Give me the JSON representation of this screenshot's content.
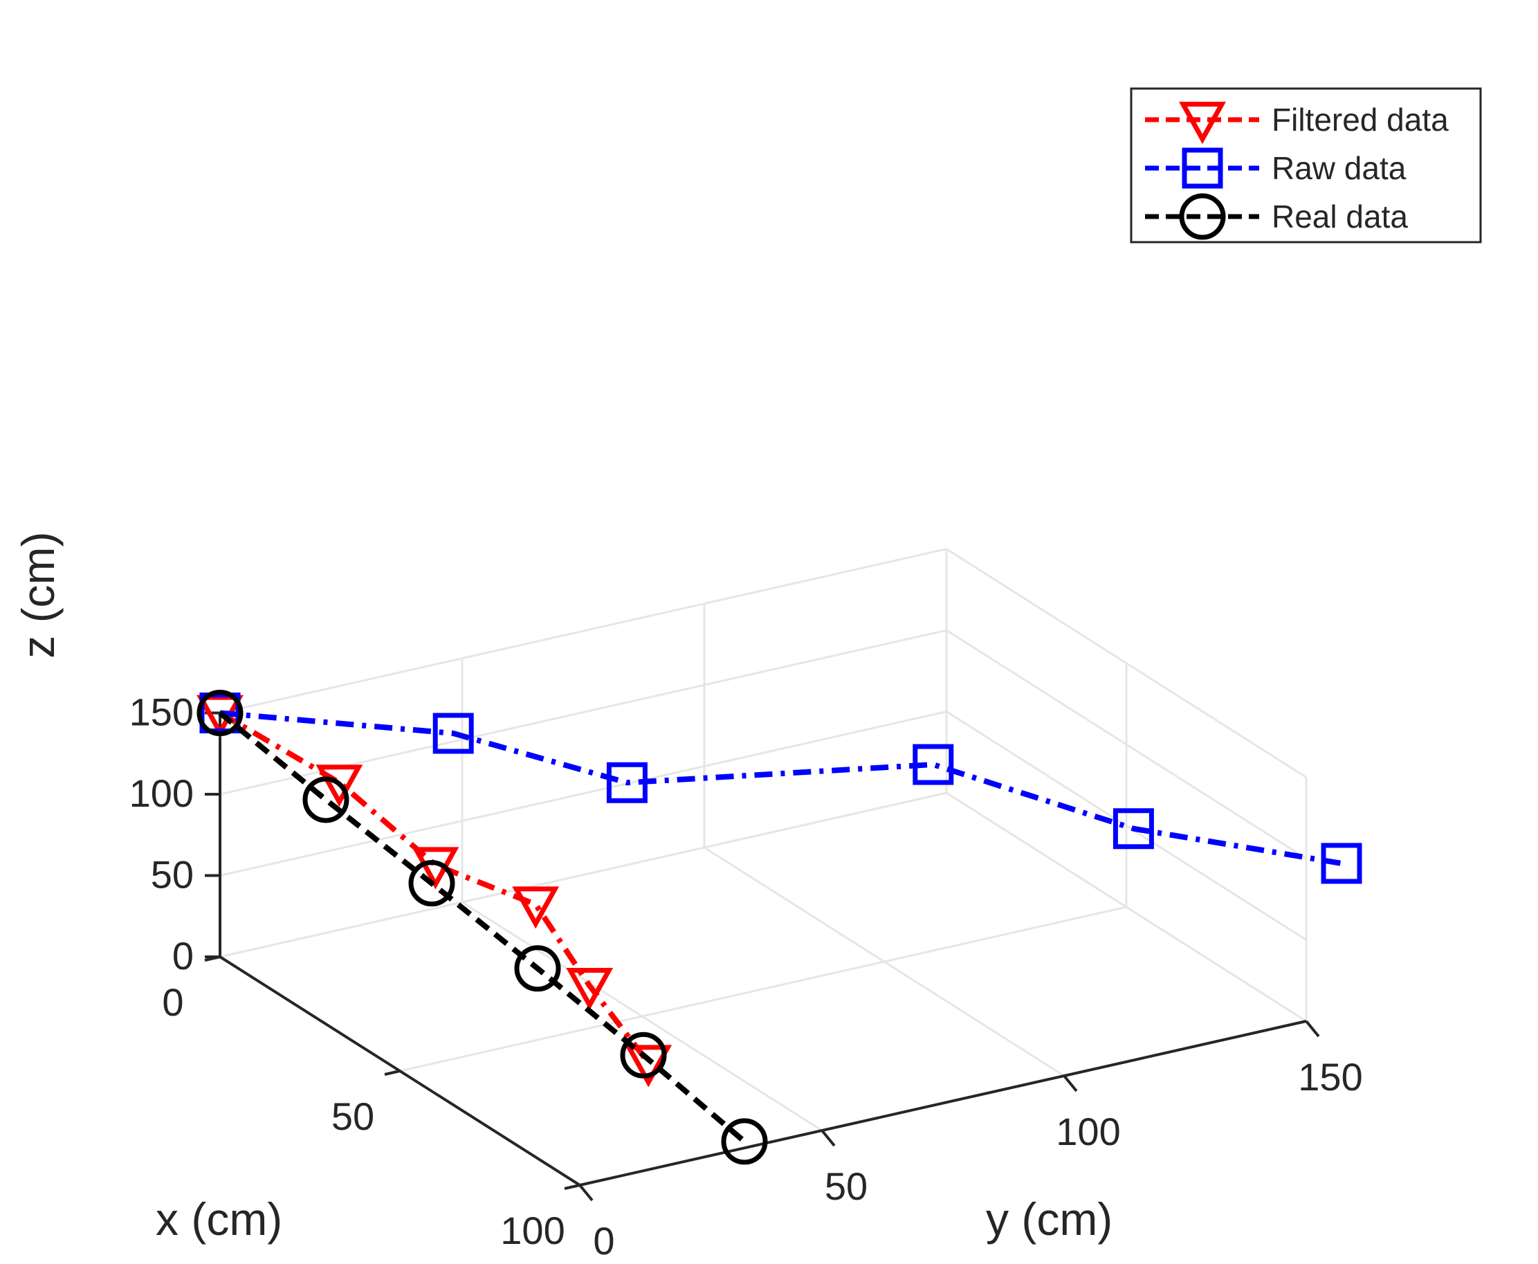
{
  "chart_data": {
    "type": "line3d",
    "xlabel": "x (cm)",
    "ylabel": "y (cm)",
    "zlabel": "z (cm)",
    "xlim": [
      0,
      100
    ],
    "ylim": [
      0,
      150
    ],
    "zlim": [
      0,
      150
    ],
    "xticks": [
      0,
      50,
      100
    ],
    "yticks": [
      0,
      50,
      100,
      150
    ],
    "zticks": [
      0,
      50,
      100,
      150
    ],
    "x_tick_labels": [
      "0",
      "50",
      "100"
    ],
    "y_tick_labels": [
      "0",
      "50",
      "100",
      "150"
    ],
    "z_tick_labels": [
      "0",
      "50",
      "100",
      "150"
    ],
    "grid": true,
    "box": true,
    "legend_position": "top-right",
    "series": [
      {
        "name": "Filtered data",
        "color": "#ff0000",
        "marker": "triangle-down",
        "line_style": "dash-dot",
        "points": [
          {
            "x": 0,
            "y": 0,
            "z": 150
          },
          {
            "x": 17,
            "y": 12,
            "z": 123
          },
          {
            "x": 37,
            "y": 17,
            "z": 97
          },
          {
            "x": 46,
            "y": 31,
            "z": 76
          },
          {
            "x": 61,
            "y": 31,
            "z": 47
          },
          {
            "x": 76,
            "y": 32,
            "z": 20
          }
        ]
      },
      {
        "name": "Raw data",
        "color": "#0000ff",
        "marker": "square",
        "line_style": "dash-dot",
        "points": [
          {
            "x": 0,
            "y": 0,
            "z": 150
          },
          {
            "x": 11,
            "y": 40,
            "z": 126
          },
          {
            "x": 27,
            "y": 64,
            "z": 102
          },
          {
            "x": 34,
            "y": 122,
            "z": 84
          },
          {
            "x": 52,
            "y": 150,
            "z": 51
          },
          {
            "x": 60,
            "y": 187,
            "z": 16
          }
        ]
      },
      {
        "name": "Real data",
        "color": "#000000",
        "marker": "circle",
        "line_style": "dashed",
        "points": [
          {
            "x": 0,
            "y": 0,
            "z": 150
          },
          {
            "x": 20,
            "y": 7,
            "z": 120
          },
          {
            "x": 40,
            "y": 14,
            "z": 92
          },
          {
            "x": 60,
            "y": 21,
            "z": 63
          },
          {
            "x": 80,
            "y": 28,
            "z": 33
          },
          {
            "x": 100,
            "y": 34,
            "z": 4
          }
        ]
      }
    ]
  }
}
